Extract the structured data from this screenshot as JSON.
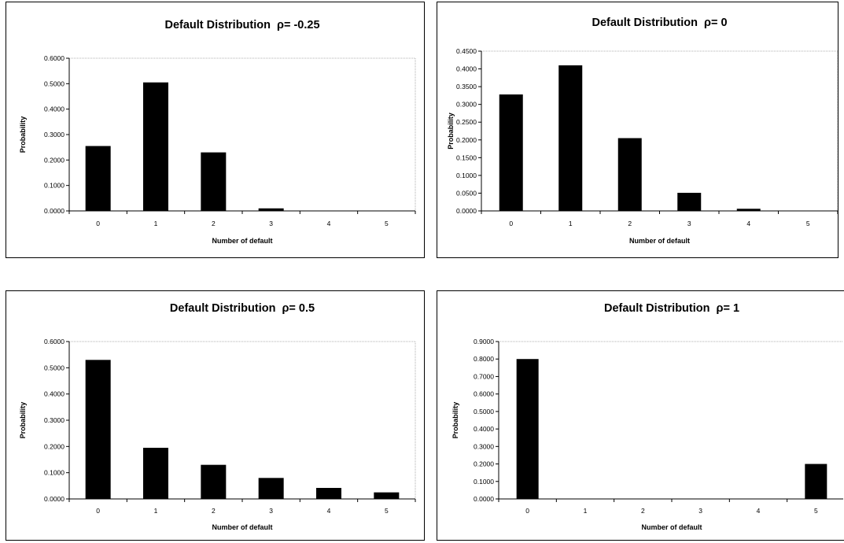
{
  "chart_data": [
    {
      "type": "bar",
      "title": "Default Distribution",
      "rho_label": "ρ= -0.25",
      "xlabel": "Number of default",
      "ylabel": "Probability",
      "categories": [
        "0",
        "1",
        "2",
        "3",
        "4",
        "5"
      ],
      "values": [
        0.255,
        0.505,
        0.23,
        0.01,
        0.0,
        0.0
      ],
      "ylim": [
        0,
        0.6
      ],
      "yticks": [
        "0.0000",
        "0.1000",
        "0.2000",
        "0.3000",
        "0.4000",
        "0.5000",
        "0.6000"
      ],
      "grid": false
    },
    {
      "type": "bar",
      "title": "Default Distribution",
      "rho_label": "ρ= 0",
      "xlabel": "Number of default",
      "ylabel": "Probability",
      "categories": [
        "0",
        "1",
        "2",
        "3",
        "4",
        "5"
      ],
      "values": [
        0.328,
        0.41,
        0.205,
        0.051,
        0.006,
        0.0
      ],
      "ylim": [
        0,
        0.45
      ],
      "yticks": [
        "0.0000",
        "0.0500",
        "0.1000",
        "0.1500",
        "0.2000",
        "0.2500",
        "0.3000",
        "0.3500",
        "0.4000",
        "0.4500"
      ],
      "grid": false
    },
    {
      "type": "bar",
      "title": "Default Distribution",
      "rho_label": "ρ= 0.5",
      "xlabel": "Number of default",
      "ylabel": "Probability",
      "categories": [
        "0",
        "1",
        "2",
        "3",
        "4",
        "5"
      ],
      "values": [
        0.53,
        0.195,
        0.13,
        0.08,
        0.042,
        0.025
      ],
      "ylim": [
        0,
        0.6
      ],
      "yticks": [
        "0.0000",
        "0.1000",
        "0.2000",
        "0.3000",
        "0.4000",
        "0.5000",
        "0.6000"
      ],
      "grid": false
    },
    {
      "type": "bar",
      "title": "Default Distribution",
      "rho_label": "ρ= 1",
      "xlabel": "Number of default",
      "ylabel": "Probability",
      "categories": [
        "0",
        "1",
        "2",
        "3",
        "4",
        "5"
      ],
      "values": [
        0.8,
        0.0,
        0.0,
        0.0,
        0.0,
        0.2
      ],
      "ylim": [
        0,
        0.9
      ],
      "yticks": [
        "0.0000",
        "0.1000",
        "0.2000",
        "0.3000",
        "0.4000",
        "0.5000",
        "0.6000",
        "0.7000",
        "0.8000",
        "0.9000"
      ],
      "grid": false
    }
  ],
  "colors": {
    "bar": "#000000",
    "axis": "#000000",
    "background": "#ffffff"
  }
}
